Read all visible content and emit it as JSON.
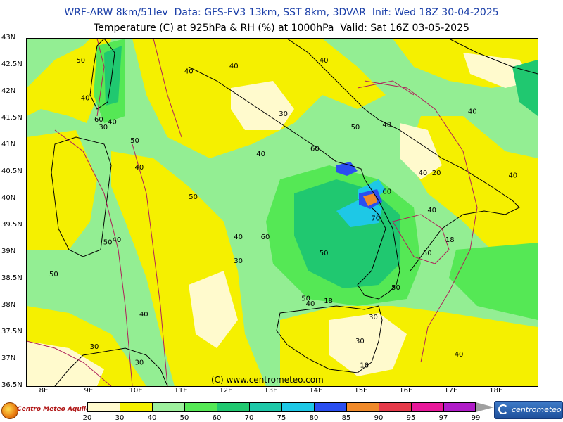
{
  "header": {
    "title_line1": "WRF-ARW 8km/51lev  Data: GFS-FV3 13km, SST 8km, 3DVAR  Init: Wed 18Z 30-04-2025",
    "title_line2": "Temperature (C) at 925hPa & RH (%) at 1000hPa  Valid: Sat 16Z 03-05-2025"
  },
  "axes": {
    "lat_labels": [
      "43N",
      "42.5N",
      "42N",
      "41.5N",
      "41N",
      "40.5N",
      "40N",
      "39.5N",
      "39N",
      "38.5N",
      "38N",
      "37.5N",
      "37N",
      "36.5N"
    ],
    "lon_labels": [
      "8E",
      "9E",
      "10E",
      "11E",
      "12E",
      "13E",
      "14E",
      "15E",
      "16E",
      "17E",
      "18E"
    ]
  },
  "map": {
    "copyright": "(C) www.centrometeo.com",
    "contour_labels": [
      {
        "text": "50",
        "lon": 8.8,
        "lat": 42.55
      },
      {
        "text": "40",
        "lon": 8.9,
        "lat": 41.85
      },
      {
        "text": "60",
        "lon": 9.2,
        "lat": 41.45
      },
      {
        "text": "30",
        "lon": 9.3,
        "lat": 41.3
      },
      {
        "text": "40",
        "lon": 9.5,
        "lat": 41.4
      },
      {
        "text": "50",
        "lon": 10.0,
        "lat": 41.05
      },
      {
        "text": "40",
        "lon": 10.1,
        "lat": 40.55
      },
      {
        "text": "40",
        "lon": 9.6,
        "lat": 39.2
      },
      {
        "text": "50",
        "lon": 9.4,
        "lat": 39.15
      },
      {
        "text": "50",
        "lon": 8.2,
        "lat": 38.55
      },
      {
        "text": "40",
        "lon": 11.2,
        "lat": 42.35
      },
      {
        "text": "40",
        "lon": 12.2,
        "lat": 42.45
      },
      {
        "text": "30",
        "lon": 13.3,
        "lat": 41.55
      },
      {
        "text": "40",
        "lon": 12.8,
        "lat": 40.8
      },
      {
        "text": "50",
        "lon": 11.3,
        "lat": 40.0
      },
      {
        "text": "40",
        "lon": 12.3,
        "lat": 39.25
      },
      {
        "text": "60",
        "lon": 12.9,
        "lat": 39.25
      },
      {
        "text": "30",
        "lon": 12.3,
        "lat": 38.8
      },
      {
        "text": "50",
        "lon": 14.2,
        "lat": 38.95
      },
      {
        "text": "40",
        "lon": 14.2,
        "lat": 42.55
      },
      {
        "text": "50",
        "lon": 14.9,
        "lat": 41.3
      },
      {
        "text": "60",
        "lon": 14.0,
        "lat": 40.9
      },
      {
        "text": "60",
        "lon": 15.6,
        "lat": 40.1
      },
      {
        "text": "70",
        "lon": 15.35,
        "lat": 39.6
      },
      {
        "text": "40",
        "lon": 15.6,
        "lat": 41.35
      },
      {
        "text": "40",
        "lon": 16.4,
        "lat": 40.45
      },
      {
        "text": "20",
        "lon": 16.7,
        "lat": 40.45
      },
      {
        "text": "40",
        "lon": 17.5,
        "lat": 41.6
      },
      {
        "text": "40",
        "lon": 18.4,
        "lat": 40.4
      },
      {
        "text": "40",
        "lon": 16.6,
        "lat": 39.75
      },
      {
        "text": "18",
        "lon": 17.0,
        "lat": 39.2
      },
      {
        "text": "50",
        "lon": 16.5,
        "lat": 38.95
      },
      {
        "text": "50",
        "lon": 15.8,
        "lat": 38.3
      },
      {
        "text": "50",
        "lon": 13.8,
        "lat": 38.1
      },
      {
        "text": "40",
        "lon": 13.9,
        "lat": 38.0
      },
      {
        "text": "18",
        "lon": 14.3,
        "lat": 38.05
      },
      {
        "text": "30",
        "lon": 15.3,
        "lat": 37.75
      },
      {
        "text": "30",
        "lon": 15.0,
        "lat": 37.3
      },
      {
        "text": "18",
        "lon": 15.1,
        "lat": 36.85
      },
      {
        "text": "40",
        "lon": 10.2,
        "lat": 37.8
      },
      {
        "text": "30",
        "lon": 9.1,
        "lat": 37.2
      },
      {
        "text": "30",
        "lon": 10.1,
        "lat": 36.9
      },
      {
        "text": "40",
        "lon": 17.2,
        "lat": 37.05
      }
    ]
  },
  "legend": {
    "left_logo": "Centro Meteo Aquileno",
    "right_logo": "centrometeo",
    "ticks": [
      "20",
      "30",
      "40",
      "50",
      "60",
      "70",
      "75",
      "80",
      "85",
      "90",
      "95",
      "97",
      "99"
    ],
    "colors": [
      "#fffacd",
      "#f5f000",
      "#9df09d",
      "#55e855",
      "#20c870",
      "#1ec8a8",
      "#1ec8e6",
      "#2a4ef0",
      "#f08a2a",
      "#e63a4a",
      "#e8189a",
      "#b01cc8",
      "#7a1ab4"
    ]
  },
  "palette": {
    "sea_base": "#93ee93",
    "yellow": "#f5f000",
    "pale": "#fffacd",
    "green": "#55e855",
    "teal": "#20c870",
    "cyan": "#1ec8e6",
    "blue": "#2a4ef0",
    "orange": "#f08a2a",
    "magenta_isotherm": "#b0205a",
    "coast": "#000000",
    "border": "#9a9a9a"
  }
}
